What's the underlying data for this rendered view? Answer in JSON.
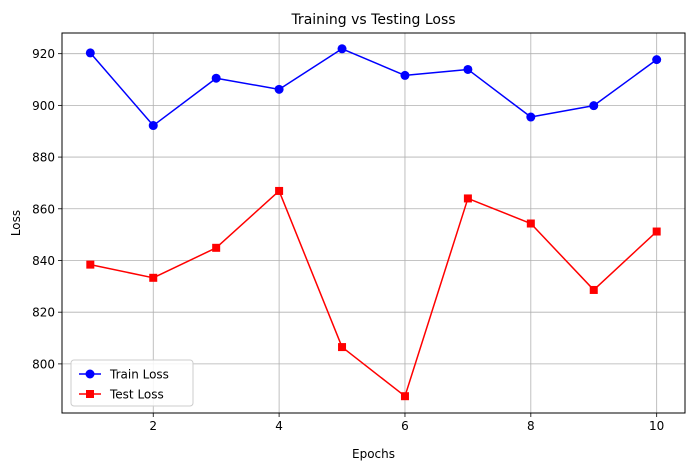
{
  "chart_data": {
    "type": "line",
    "title": "Training vs Testing Loss",
    "xlabel": "Epochs",
    "ylabel": "Loss",
    "x": [
      1,
      2,
      3,
      4,
      5,
      6,
      7,
      8,
      9,
      10
    ],
    "xlim": [
      0.55,
      10.45
    ],
    "ylim": [
      781,
      928
    ],
    "xticks": [
      2,
      4,
      6,
      8,
      10
    ],
    "yticks": [
      800,
      820,
      840,
      860,
      880,
      900,
      920
    ],
    "grid": true,
    "legend_position": "lower left",
    "series": [
      {
        "name": "Train Loss",
        "color": "#0000ff",
        "marker": "circle",
        "values": [
          920.3,
          892.2,
          910.5,
          906.2,
          921.9,
          911.6,
          913.9,
          895.5,
          899.9,
          917.7
        ]
      },
      {
        "name": "Test Loss",
        "color": "#ff0000",
        "marker": "square",
        "values": [
          838.4,
          833.3,
          844.9,
          866.9,
          806.5,
          787.5,
          864.0,
          854.3,
          828.6,
          851.2
        ]
      }
    ]
  }
}
